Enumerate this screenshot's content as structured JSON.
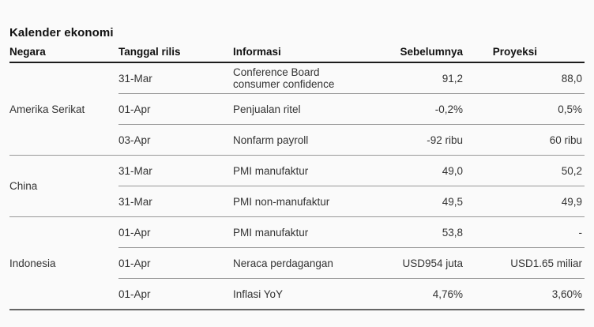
{
  "page": {
    "title": "Kalender ekonomi"
  },
  "table": {
    "columns": [
      "Negara",
      "Tanggal rilis",
      "Informasi",
      "Sebelumnya",
      "Proyeksi"
    ],
    "sections": [
      {
        "country": "Amerika Serikat",
        "rows": [
          {
            "date": "31-Mar",
            "info": "Conference Board consumer confidence",
            "previous": "91,2",
            "forecast": "88,0"
          },
          {
            "date": "01-Apr",
            "info": "Penjualan ritel",
            "previous": "-0,2%",
            "forecast": "0,5%"
          },
          {
            "date": "03-Apr",
            "info": "Nonfarm payroll",
            "previous": "-92 ribu",
            "forecast": "60 ribu"
          }
        ]
      },
      {
        "country": "China",
        "rows": [
          {
            "date": "31-Mar",
            "info": "PMI manufaktur",
            "previous": "49,0",
            "forecast": "50,2"
          },
          {
            "date": "31-Mar",
            "info": "PMI non-manufaktur",
            "previous": "49,5",
            "forecast": "49,9"
          }
        ]
      },
      {
        "country": "Indonesia",
        "rows": [
          {
            "date": "01-Apr",
            "info": "PMI manufaktur",
            "previous": "53,8",
            "forecast": "-"
          },
          {
            "date": "01-Apr",
            "info": "Neraca perdagangan",
            "previous": "USD954 juta",
            "forecast": "USD1.65 miliar"
          },
          {
            "date": "01-Apr",
            "info": "Inflasi YoY",
            "previous": "4,76%",
            "forecast": "3,60%"
          }
        ]
      }
    ]
  },
  "colors": {
    "background": "#fafafa",
    "heading_text": "#111111",
    "body_text": "#333333",
    "header_rule": "#1c1c1c",
    "row_divider": "#979797",
    "bottom_rule": "#666666"
  }
}
